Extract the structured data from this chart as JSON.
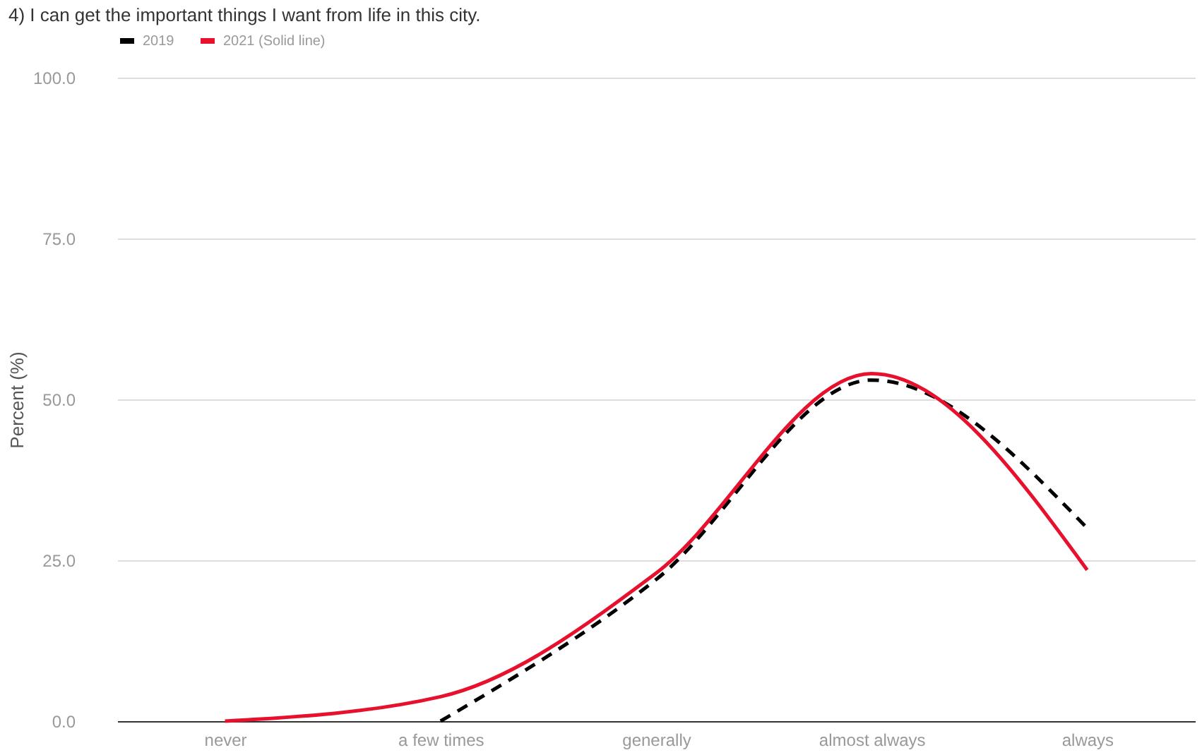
{
  "chart_data": {
    "type": "line",
    "title": "4) I can get the important things I want from life in this city.",
    "ylabel": "Percent (%)",
    "categories": [
      "never",
      "a few times",
      "generally",
      "almost always",
      "always"
    ],
    "series": [
      {
        "name": "2019",
        "color": "#000000",
        "line_style": "dashed",
        "values": [
          null,
          0,
          22,
          53,
          30
        ]
      },
      {
        "name": "2021 (Solid line)",
        "color": "#e8112d",
        "line_style": "solid",
        "values": [
          0,
          3.8,
          23,
          54,
          23.5
        ]
      }
    ],
    "ylim": [
      0,
      100
    ],
    "yticks": [
      {
        "value": 0,
        "label": "0.0"
      },
      {
        "value": 25,
        "label": "25.0"
      },
      {
        "value": 50,
        "label": "50.0"
      },
      {
        "value": 75,
        "label": "75.0"
      },
      {
        "value": 100,
        "label": "100.0"
      }
    ],
    "grid": "y",
    "legend": "top",
    "marker": "none"
  }
}
